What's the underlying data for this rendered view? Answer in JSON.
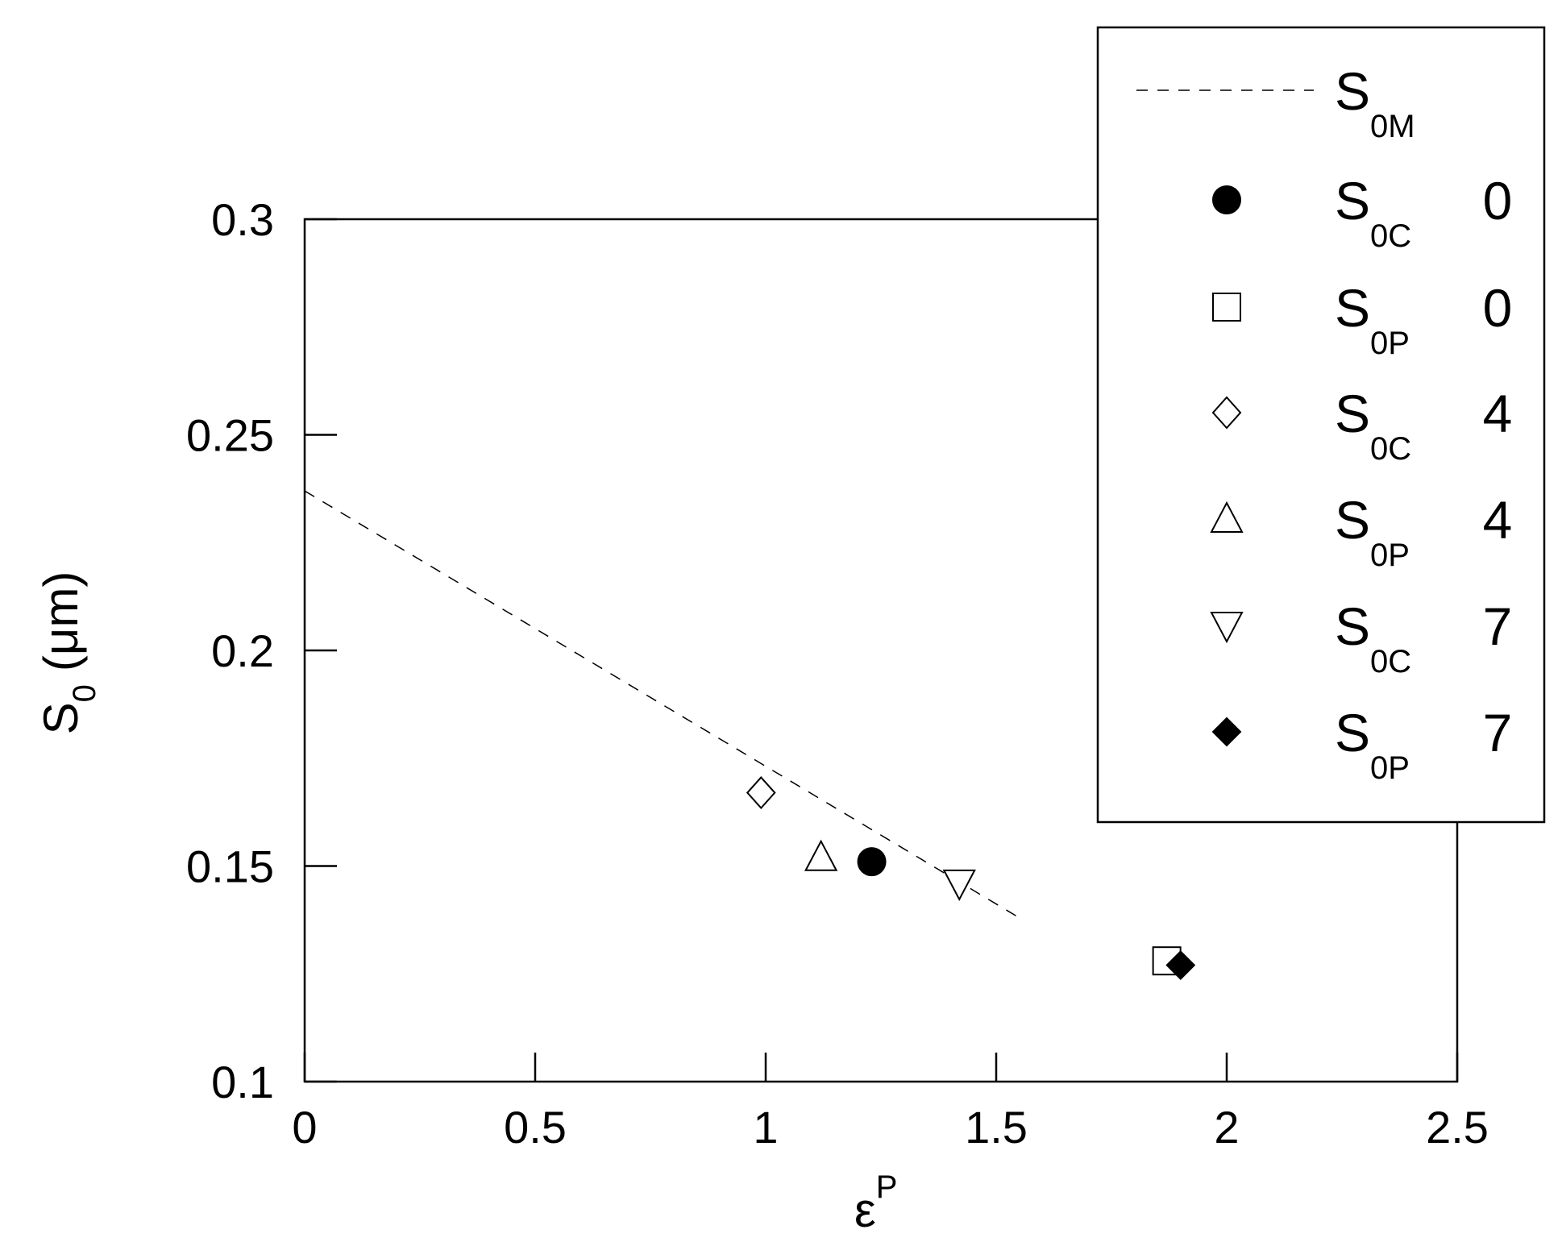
{
  "chart_data": {
    "type": "scatter",
    "title": "",
    "xlabel": {
      "main": "ε",
      "sup": "P"
    },
    "ylabel": {
      "main": "S",
      "sub": "0",
      "unit": "(μm)"
    },
    "xlim": [
      0,
      2.5
    ],
    "ylim": [
      0.1,
      0.3
    ],
    "xticks": [
      0,
      0.5,
      1,
      1.5,
      2,
      2.5
    ],
    "xtick_labels": [
      "0",
      "0.5",
      "1",
      "1.5",
      "2",
      "2.5"
    ],
    "yticks": [
      0.1,
      0.15,
      0.2,
      0.25,
      0.3
    ],
    "ytick_labels": [
      "0.1",
      "0.15",
      "0.2",
      "0.25",
      "0.3"
    ],
    "grid": false,
    "legend_position": "top-right",
    "series": [
      {
        "name": "S0M",
        "label_main": "S",
        "label_sub": "0M",
        "label_value": "",
        "marker": "dashed-line",
        "x": [
          0,
          1.55
        ],
        "y": [
          0.237,
          0.138
        ]
      },
      {
        "name": "S0C 0",
        "label_main": "S",
        "label_sub": "0C",
        "label_value": "0",
        "marker": "filled-circle",
        "x": [
          1.23
        ],
        "y": [
          0.151
        ]
      },
      {
        "name": "S0P 0",
        "label_main": "S",
        "label_sub": "0P",
        "label_value": "0",
        "marker": "open-square",
        "x": [
          1.87
        ],
        "y": [
          0.128
        ]
      },
      {
        "name": "S0C 4",
        "label_main": "S",
        "label_sub": "0C",
        "label_value": "4",
        "marker": "open-diamond",
        "x": [
          0.99
        ],
        "y": [
          0.167
        ]
      },
      {
        "name": "S0P 4",
        "label_main": "S",
        "label_sub": "0P",
        "label_value": "4",
        "marker": "open-triangle-up",
        "x": [
          1.12
        ],
        "y": [
          0.152
        ]
      },
      {
        "name": "S0C 7",
        "label_main": "S",
        "label_sub": "0C",
        "label_value": "7",
        "marker": "open-triangle-down",
        "x": [
          1.42
        ],
        "y": [
          0.146
        ]
      },
      {
        "name": "S0P 7",
        "label_main": "S",
        "label_sub": "0P",
        "label_value": "7",
        "marker": "filled-diamond",
        "x": [
          1.9
        ],
        "y": [
          0.127
        ]
      }
    ]
  }
}
